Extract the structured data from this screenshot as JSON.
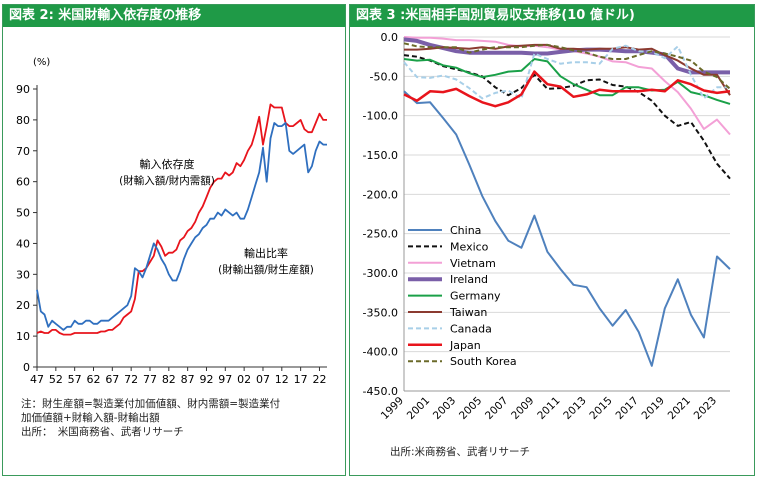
{
  "left": {
    "title": "図表 2: 米国財輸入依存度の推移",
    "unit": "(%)",
    "annotation_import": [
      "輸入依存度",
      "(財輸入額/財内需額)"
    ],
    "annotation_export": [
      "輸出比率",
      "(財輸出額/財生産額)"
    ],
    "notes": [
      "注：財生産額=製造業付加価値額、財内需額=製造業付",
      "加価値額+財輸入額-財輸出額",
      "出所：　米国商務省、武者リサーチ"
    ]
  },
  "right": {
    "title": "図表 3 :米国相手国別貿易収支推移(10 億ドル)",
    "source": "出所:米商務省、武者リサーチ"
  },
  "chart_data": [
    {
      "type": "line",
      "title": "図表 2: 米国財輸入依存度の推移",
      "ylabel": "(%)",
      "xlabel": "",
      "ylim": [
        0,
        90
      ],
      "yticks": [
        0,
        10,
        20,
        30,
        40,
        50,
        60,
        70,
        80,
        90
      ],
      "xlim": [
        1947,
        2024
      ],
      "xticks": [
        "47",
        "52",
        "57",
        "62",
        "67",
        "72",
        "77",
        "82",
        "87",
        "92",
        "97",
        "02",
        "07",
        "12",
        "17",
        "22"
      ],
      "grid": false,
      "series": [
        {
          "name": "輸入依存度 (財輸入額/財内需額)",
          "color": "#e8141c",
          "x": [
            1947,
            1948,
            1949,
            1950,
            1951,
            1952,
            1953,
            1954,
            1955,
            1956,
            1957,
            1958,
            1959,
            1960,
            1961,
            1962,
            1963,
            1964,
            1965,
            1966,
            1967,
            1968,
            1969,
            1970,
            1971,
            1972,
            1973,
            1974,
            1975,
            1976,
            1977,
            1978,
            1979,
            1980,
            1981,
            1982,
            1983,
            1984,
            1985,
            1986,
            1987,
            1988,
            1989,
            1990,
            1991,
            1992,
            1993,
            1994,
            1995,
            1996,
            1997,
            1998,
            1999,
            2000,
            2001,
            2002,
            2003,
            2004,
            2005,
            2006,
            2007,
            2008,
            2009,
            2010,
            2011,
            2012,
            2013,
            2014,
            2015,
            2016,
            2017,
            2018,
            2019,
            2020,
            2021,
            2022,
            2023,
            2024
          ],
          "y": [
            11,
            11.5,
            11,
            11,
            12,
            12,
            11,
            10.5,
            10.5,
            10.5,
            11,
            11,
            11,
            11,
            11,
            11,
            11,
            11.5,
            11.5,
            12,
            12,
            13,
            14,
            16,
            17,
            18,
            22,
            31,
            31,
            32,
            34,
            36,
            41,
            39,
            36,
            37,
            37,
            38,
            41,
            42,
            44,
            45,
            47,
            50,
            52,
            55,
            58,
            60,
            61,
            61,
            63,
            62,
            63,
            66,
            65,
            67,
            70,
            72,
            76,
            81,
            72,
            78,
            85,
            84,
            84,
            84,
            79,
            78,
            78,
            79,
            80,
            77,
            76,
            76,
            79,
            82,
            80,
            80
          ]
        },
        {
          "name": "輸出比率 (財輸出額/財生産額)",
          "color": "#2f6fbf",
          "x": [
            1947,
            1948,
            1949,
            1950,
            1951,
            1952,
            1953,
            1954,
            1955,
            1956,
            1957,
            1958,
            1959,
            1960,
            1961,
            1962,
            1963,
            1964,
            1965,
            1966,
            1967,
            1968,
            1969,
            1970,
            1971,
            1972,
            1973,
            1974,
            1975,
            1976,
            1977,
            1978,
            1979,
            1980,
            1981,
            1982,
            1983,
            1984,
            1985,
            1986,
            1987,
            1988,
            1989,
            1990,
            1991,
            1992,
            1993,
            1994,
            1995,
            1996,
            1997,
            1998,
            1999,
            2000,
            2001,
            2002,
            2003,
            2004,
            2005,
            2006,
            2007,
            2008,
            2009,
            2010,
            2011,
            2012,
            2013,
            2014,
            2015,
            2016,
            2017,
            2018,
            2019,
            2020,
            2021,
            2022,
            2023,
            2024
          ],
          "y": [
            25,
            18,
            17,
            13,
            15,
            14,
            13,
            12,
            13,
            13,
            15,
            14,
            14,
            15,
            15,
            14,
            14,
            15,
            15,
            15,
            16,
            17,
            18,
            19,
            20,
            23,
            32,
            31,
            29,
            32,
            36,
            40,
            38,
            35,
            33,
            30,
            28,
            28,
            31,
            35,
            38,
            40,
            42,
            43,
            45,
            46,
            48,
            48,
            50,
            49,
            51,
            50,
            49,
            50,
            48,
            48,
            51,
            55,
            59,
            63,
            71,
            60,
            74,
            79,
            78,
            78,
            79,
            70,
            69,
            70,
            71,
            72,
            63,
            65,
            70,
            73,
            72,
            72
          ]
        }
      ]
    },
    {
      "type": "line",
      "title": "図表 3 :米国相手国別貿易収支推移(10 億ドル)",
      "xlabel": "",
      "ylabel": "",
      "ylim": [
        -450,
        0
      ],
      "yticks": [
        0,
        -50,
        -100,
        -150,
        -200,
        -250,
        -300,
        -350,
        -400,
        -450
      ],
      "xlim": [
        1999,
        2024
      ],
      "xticks": [
        "1999",
        "2001",
        "2003",
        "2005",
        "2007",
        "2009",
        "2011",
        "2013",
        "2015",
        "2017",
        "2019",
        "2021",
        "2023"
      ],
      "grid": true,
      "legend_position": "lower-left",
      "x": [
        1999,
        2000,
        2001,
        2002,
        2003,
        2004,
        2005,
        2006,
        2007,
        2008,
        2009,
        2010,
        2011,
        2012,
        2013,
        2014,
        2015,
        2016,
        2017,
        2018,
        2019,
        2020,
        2021,
        2022,
        2023,
        2024
      ],
      "series": [
        {
          "name": "China",
          "color": "#4f81bd",
          "dash": "solid",
          "width": 2,
          "values": [
            -69,
            -84,
            -83,
            -103,
            -124,
            -162,
            -202,
            -234,
            -259,
            -268,
            -227,
            -273,
            -295,
            -315,
            -318,
            -345,
            -367,
            -347,
            -375,
            -418,
            -345,
            -308,
            -353,
            -382,
            -279,
            -295
          ]
        },
        {
          "name": "Mexico",
          "color": "#111111",
          "dash": "5,3",
          "width": 2,
          "values": [
            -23,
            -25,
            -30,
            -37,
            -41,
            -45,
            -50,
            -64,
            -74,
            -65,
            -48,
            -66,
            -65,
            -62,
            -55,
            -54,
            -61,
            -63,
            -70,
            -81,
            -100,
            -113,
            -108,
            -132,
            -161,
            -180
          ]
        },
        {
          "name": "Vietnam",
          "color": "#f3a0d6",
          "dash": "solid",
          "width": 2,
          "values": [
            0,
            -1,
            -1,
            -2,
            -4,
            -4,
            -5,
            -6,
            -10,
            -12,
            -11,
            -13,
            -16,
            -18,
            -21,
            -25,
            -31,
            -32,
            -38,
            -40,
            -56,
            -70,
            -91,
            -117,
            -105,
            -124
          ]
        },
        {
          "name": "Ireland",
          "color": "#7a5fa8",
          "dash": "solid",
          "width": 4,
          "values": [
            -3,
            -5,
            -10,
            -14,
            -18,
            -20,
            -20,
            -20,
            -20,
            -20,
            -21,
            -21,
            -19,
            -17,
            -16,
            -16,
            -17,
            -18,
            -18,
            -20,
            -22,
            -40,
            -45,
            -45,
            -45,
            -45
          ]
        },
        {
          "name": "Germany",
          "color": "#1aa048",
          "dash": "solid",
          "width": 2,
          "values": [
            -28,
            -30,
            -29,
            -36,
            -39,
            -46,
            -51,
            -48,
            -44,
            -43,
            -28,
            -31,
            -50,
            -60,
            -67,
            -74,
            -74,
            -64,
            -64,
            -68,
            -67,
            -57,
            -70,
            -74,
            -80,
            -85
          ]
        },
        {
          "name": "Taiwan",
          "color": "#8b3a30",
          "dash": "solid",
          "width": 2,
          "values": [
            -16,
            -16,
            -15,
            -13,
            -14,
            -15,
            -13,
            -15,
            -12,
            -11,
            -10,
            -10,
            -15,
            -15,
            -16,
            -15,
            -15,
            -13,
            -16,
            -15,
            -23,
            -30,
            -40,
            -48,
            -48,
            -74
          ]
        },
        {
          "name": "Canada",
          "color": "#a8cfe8",
          "dash": "5,3",
          "width": 2,
          "values": [
            -32,
            -51,
            -52,
            -49,
            -54,
            -65,
            -78,
            -71,
            -68,
            -78,
            -21,
            -28,
            -34,
            -32,
            -32,
            -34,
            -15,
            -11,
            -18,
            -19,
            -27,
            -12,
            -48,
            -78,
            -64,
            -64
          ]
        },
        {
          "name": "Japan",
          "color": "#e8141c",
          "dash": "solid",
          "width": 2.5,
          "values": [
            -73,
            -81,
            -69,
            -70,
            -66,
            -75,
            -83,
            -88,
            -83,
            -73,
            -44,
            -60,
            -63,
            -76,
            -73,
            -67,
            -69,
            -69,
            -69,
            -67,
            -69,
            -55,
            -60,
            -68,
            -71,
            -69
          ]
        },
        {
          "name": "South Korea",
          "color": "#6b6a2a",
          "dash": "5,3",
          "width": 2,
          "values": [
            -8,
            -12,
            -13,
            -13,
            -13,
            -20,
            -16,
            -13,
            -13,
            -13,
            -11,
            -10,
            -13,
            -17,
            -20,
            -25,
            -28,
            -28,
            -23,
            -18,
            -21,
            -25,
            -30,
            -44,
            -51,
            -66
          ]
        }
      ]
    }
  ]
}
